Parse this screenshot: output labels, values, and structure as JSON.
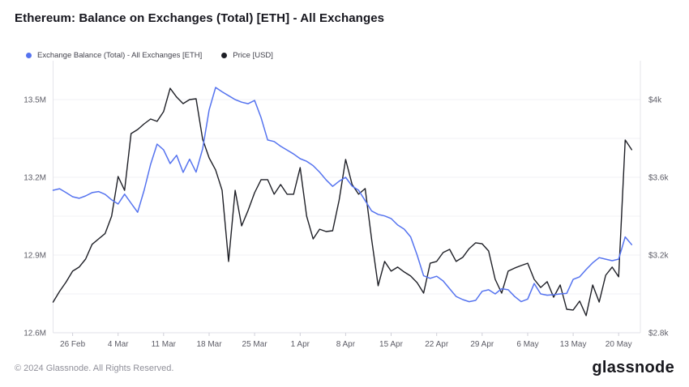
{
  "header": {
    "title": "Ethereum: Balance on Exchanges (Total) [ETH] - All Exchanges"
  },
  "legend": [
    {
      "label": "Exchange Balance (Total) - All Exchanges [ETH]",
      "color": "#5573ef"
    },
    {
      "label": "Price [USD]",
      "color": "#1e1f26"
    }
  ],
  "chart_data": {
    "type": "line",
    "title": "Ethereum: Balance on Exchanges (Total) [ETH] - All Exchanges",
    "legend_position": "top-left",
    "grid": "horizontal",
    "x_axis": {
      "interval": "daily",
      "start_date": "23 Feb",
      "end_date": "22 May",
      "tick_labels": [
        "26 Feb",
        "4 Mar",
        "11 Mar",
        "18 Mar",
        "25 Mar",
        "1 Apr",
        "8 Apr",
        "15 Apr",
        "22 Apr",
        "29 Apr",
        "6 May",
        "13 May",
        "20 May"
      ],
      "first_tick_day_index": 3,
      "days_per_tick": 7,
      "total_days": 90
    },
    "y_left": {
      "label": "Exchange Balance (Total) - All Exchanges [ETH]",
      "unit": "million ETH",
      "min": 12.6,
      "max": 13.5,
      "tick_labels": [
        "13.5M",
        "13.2M",
        "12.9M",
        "12.6M"
      ],
      "minor_gridline_step": 0.15
    },
    "y_right": {
      "label": "Price [USD]",
      "unit": "USD",
      "min": 2800,
      "max": 4000,
      "tick_labels": [
        "$4k",
        "$3.6k",
        "$3.2k",
        "$2.8k"
      ]
    },
    "series": [
      {
        "name": "Exchange Balance (Total) - All Exchanges [ETH]",
        "axis": "left",
        "color": "#5573ef",
        "values": [
          13.15,
          13.156,
          13.141,
          13.125,
          13.119,
          13.128,
          13.141,
          13.145,
          13.134,
          13.113,
          13.097,
          13.135,
          13.1,
          13.065,
          13.15,
          13.25,
          13.328,
          13.306,
          13.253,
          13.285,
          13.219,
          13.27,
          13.22,
          13.31,
          13.46,
          13.547,
          13.53,
          13.515,
          13.5,
          13.49,
          13.484,
          13.497,
          13.43,
          13.344,
          13.338,
          13.32,
          13.305,
          13.29,
          13.272,
          13.262,
          13.245,
          13.22,
          13.19,
          13.165,
          13.185,
          13.2,
          13.166,
          13.15,
          13.11,
          13.07,
          13.057,
          13.051,
          13.041,
          13.016,
          13.0,
          12.97,
          12.9,
          12.82,
          12.81,
          12.818,
          12.8,
          12.77,
          12.74,
          12.728,
          12.72,
          12.725,
          12.76,
          12.766,
          12.75,
          12.77,
          12.766,
          12.74,
          12.72,
          12.73,
          12.79,
          12.75,
          12.745,
          12.747,
          12.75,
          12.752,
          12.806,
          12.816,
          12.844,
          12.87,
          12.89,
          12.884,
          12.878,
          12.884,
          12.97,
          12.94
        ]
      },
      {
        "name": "Price [USD]",
        "axis": "right",
        "color": "#1e1f26",
        "values": [
          2958,
          3013,
          3061,
          3117,
          3138,
          3179,
          3255,
          3283,
          3311,
          3400,
          3604,
          3533,
          3825,
          3846,
          3875,
          3900,
          3888,
          3938,
          4058,
          4013,
          3979,
          4000,
          4004,
          3796,
          3700,
          3638,
          3533,
          3167,
          3533,
          3350,
          3430,
          3521,
          3588,
          3588,
          3513,
          3563,
          3513,
          3513,
          3650,
          3400,
          3283,
          3333,
          3321,
          3325,
          3483,
          3692,
          3563,
          3513,
          3542,
          3280,
          3042,
          3167,
          3117,
          3138,
          3113,
          3092,
          3058,
          3004,
          3158,
          3167,
          3213,
          3229,
          3167,
          3188,
          3233,
          3263,
          3258,
          3221,
          3075,
          3004,
          3117,
          3133,
          3146,
          3158,
          3075,
          3033,
          3063,
          2983,
          3046,
          2921,
          2917,
          2963,
          2888,
          3046,
          2958,
          3096,
          3138,
          3088,
          3792,
          3742
        ]
      }
    ]
  },
  "footer": {
    "copyright": "© 2024 Glassnode. All Rights Reserved.",
    "brand": "glassnode"
  }
}
